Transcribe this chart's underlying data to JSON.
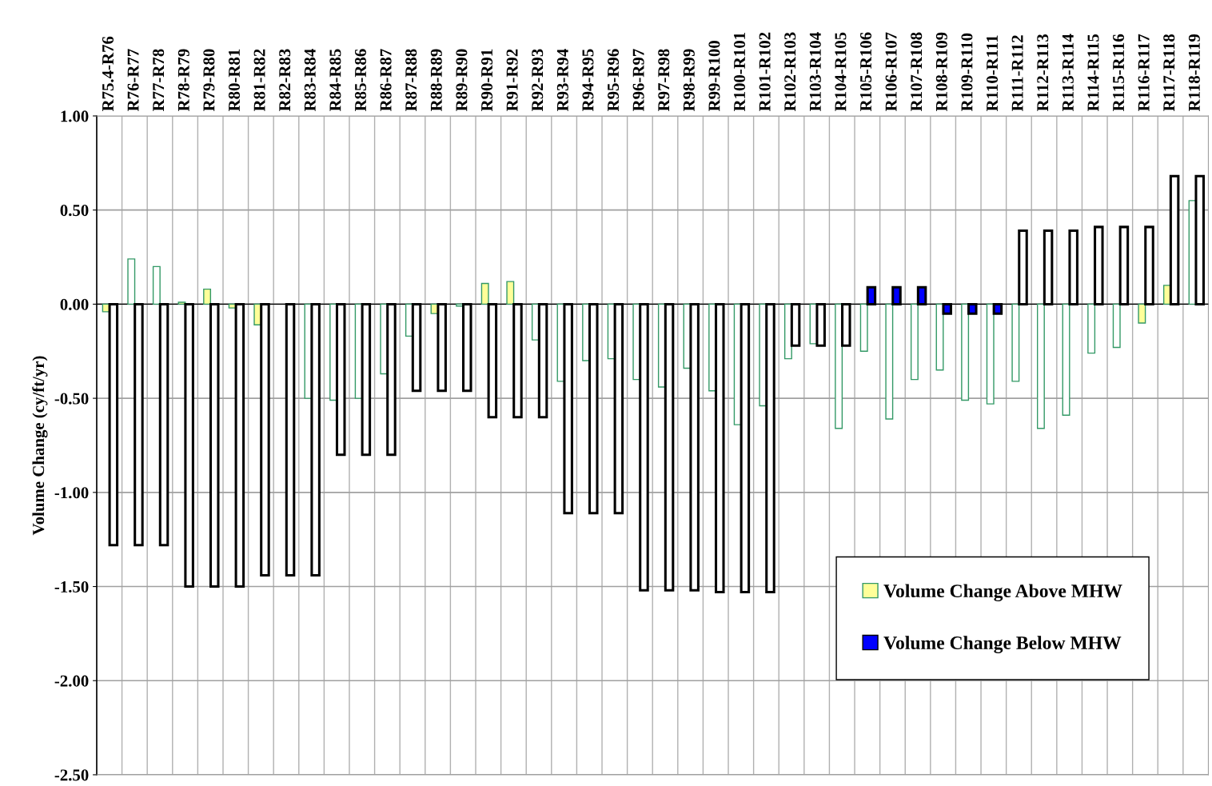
{
  "chart_data": {
    "type": "bar",
    "ylabel": "Volume Change (cy/ft/yr)",
    "categories": [
      "R75.4-R76",
      "R76-R77",
      "R77-R78",
      "R78-R79",
      "R79-R80",
      "R80-R81",
      "R81-R82",
      "R82-R83",
      "R83-R84",
      "R84-R85",
      "R85-R86",
      "R86-R87",
      "R87-R88",
      "R88-R89",
      "R89-R90",
      "R90-R91",
      "R91-R92",
      "R92-R93",
      "R93-R94",
      "R94-R95",
      "R95-R96",
      "R96-R97",
      "R97-R98",
      "R98-R99",
      "R99-R100",
      "R100-R101",
      "R101-R102",
      "R102-R103",
      "R103-R104",
      "R104-R105",
      "R105-R106",
      "R106-R107",
      "R107-R108",
      "R108-R109",
      "R109-R110",
      "R110-R111",
      "R111-R112",
      "R112-R113",
      "R113-R114",
      "R114-R115",
      "R115-R116",
      "R116-R117",
      "R117-R118",
      "R118-R119"
    ],
    "series": [
      {
        "name": "Volume Change Above MHW",
        "color": "#ffff99",
        "values": [
          -0.04,
          0.24,
          0.2,
          0.01,
          0.08,
          -0.02,
          -0.11,
          null,
          -0.5,
          -0.51,
          -0.5,
          -0.37,
          -0.17,
          -0.05,
          -0.01,
          0.11,
          0.12,
          -0.19,
          -0.41,
          -0.3,
          -0.29,
          -0.4,
          -0.44,
          -0.34,
          -0.46,
          -0.64,
          -0.54,
          -0.29,
          -0.21,
          -0.66,
          -0.25,
          -0.61,
          -0.4,
          -0.35,
          -0.51,
          -0.53,
          -0.41,
          -0.66,
          -0.59,
          -0.26,
          -0.23,
          -0.1,
          0.1,
          0.55
        ],
        "colors": [
          "#ffff99",
          "#ffffff",
          "#ffffff",
          "#ffff99",
          "#ffff99",
          "#ffff99",
          "#ffff99",
          "#ffffff",
          "#ffffff",
          "#ffffff",
          "#ffffff",
          "#ffffff",
          "#ffffff",
          "#ffff99",
          "#ffffff",
          "#ffff99",
          "#ffff99",
          "#ffffff",
          "#ffffff",
          "#ffffff",
          "#ffffff",
          "#ffffff",
          "#ffffff",
          "#ffffff",
          "#ffffff",
          "#ffffff",
          "#ffffff",
          "#ffffff",
          "#ffffff",
          "#ffffff",
          "#ffffff",
          "#ffffff",
          "#ffffff",
          "#ffffff",
          "#ffffff",
          "#ffffff",
          "#ffffff",
          "#ffffff",
          "#ffffff",
          "#ffffff",
          "#ffffff",
          "#ffff99",
          "#ffff99",
          "#ffffff"
        ]
      },
      {
        "name": "Volume Change Below MHW",
        "color": "#0000ff",
        "values": [
          -1.28,
          -1.28,
          -1.28,
          -1.5,
          -1.5,
          -1.5,
          -1.44,
          -1.44,
          -1.44,
          -0.8,
          -0.8,
          -0.8,
          -0.46,
          -0.46,
          -0.46,
          -0.6,
          -0.6,
          -0.6,
          -1.11,
          -1.11,
          -1.11,
          -1.52,
          -1.52,
          -1.52,
          -1.53,
          -1.53,
          -1.53,
          -0.22,
          -0.22,
          -0.22,
          0.09,
          0.09,
          0.09,
          -0.05,
          -0.05,
          -0.05,
          0.39,
          0.39,
          0.39,
          0.41,
          0.41,
          0.41,
          0.68,
          0.68
        ],
        "colors": [
          "#ffffff",
          "#ffffff",
          "#ffffff",
          "#ffffff",
          "#ffffff",
          "#ffffff",
          "#ffffff",
          "#ffffff",
          "#ffffff",
          "#ffffff",
          "#ffffff",
          "#ffffff",
          "#ffffff",
          "#ffffff",
          "#ffffff",
          "#ffffff",
          "#ffffff",
          "#ffffff",
          "#ffffff",
          "#ffffff",
          "#ffffff",
          "#ffffff",
          "#ffffff",
          "#ffffff",
          "#ffffff",
          "#ffffff",
          "#ffffff",
          "#ffffff",
          "#ffffff",
          "#ffffff",
          "#0000ff",
          "#0000ff",
          "#0000ff",
          "#0000ff",
          "#0000ff",
          "#0000ff",
          "#ffffff",
          "#ffffff",
          "#ffffff",
          "#ffffff",
          "#ffffff",
          "#ffffff",
          "#ffffff",
          "#ffffff"
        ]
      }
    ],
    "ylim": [
      -2.5,
      1.0
    ],
    "yticks": [
      {
        "value": 1.0,
        "label": "1.00"
      },
      {
        "value": 0.5,
        "label": "0.50"
      },
      {
        "value": 0.0,
        "label": "0.00"
      },
      {
        "value": -0.5,
        "label": "-0.50"
      },
      {
        "value": -1.0,
        "label": "-1.00"
      },
      {
        "value": -1.5,
        "label": "-1.50"
      },
      {
        "value": -2.0,
        "label": "-2.00"
      },
      {
        "value": -2.5,
        "label": "-2.50"
      }
    ],
    "grid": true,
    "legend": "bottom right"
  }
}
